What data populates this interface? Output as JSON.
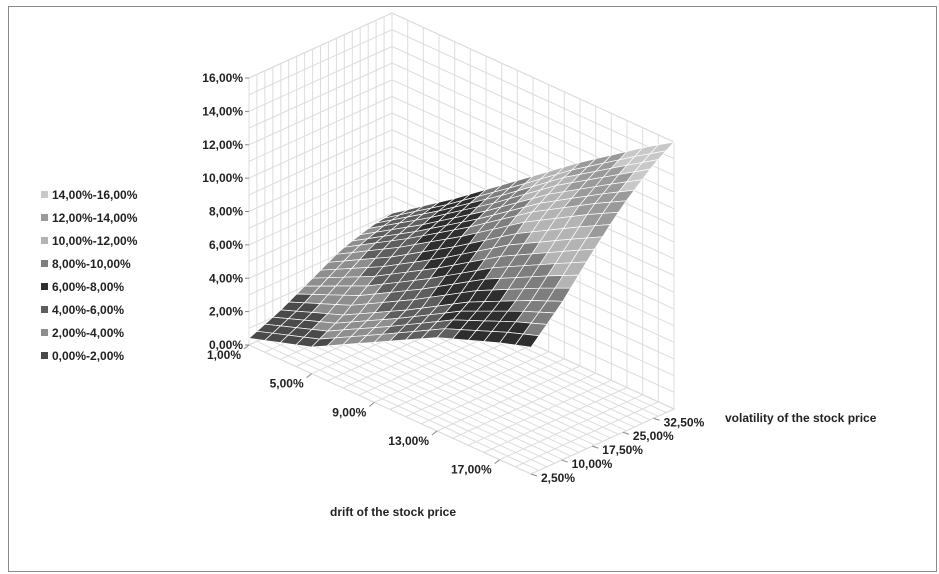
{
  "chart_data": {
    "type": "surface",
    "title": "",
    "xlabel": "drift of the stock price",
    "ylabel": "volatility of the stock price",
    "zlabel": "",
    "x_ticks": [
      "1,00%",
      "5,00%",
      "9,00%",
      "13,00%",
      "17,00%"
    ],
    "y_ticks": [
      "2,50%",
      "10,00%",
      "17,50%",
      "25,00%",
      "32,50%"
    ],
    "z_ticks": [
      "0,00%",
      "2,00%",
      "4,00%",
      "6,00%",
      "8,00%",
      "10,00%",
      "12,00%",
      "14,00%",
      "16,00%"
    ],
    "x_range": [
      1,
      19
    ],
    "y_range": [
      2.5,
      37.5
    ],
    "z_range": [
      0,
      16
    ],
    "legend_position": "left",
    "legend": [
      {
        "label": "14,00%-16,00%",
        "color": "#c8c8c8"
      },
      {
        "label": "12,00%-14,00%",
        "color": "#9a9a9a"
      },
      {
        "label": "10,00%-12,00%",
        "color": "#b4b4b4"
      },
      {
        "label": "8,00%-10,00%",
        "color": "#7e7e7e"
      },
      {
        "label": "6,00%-8,00%",
        "color": "#2e2e2e"
      },
      {
        "label": "4,00%-6,00%",
        "color": "#5e5e5e"
      },
      {
        "label": "2,00%-4,00%",
        "color": "#8e8e8e"
      },
      {
        "label": "0,00%-2,00%",
        "color": "#4a4a4a"
      }
    ],
    "band_colors": [
      "#4a4a4a",
      "#8e8e8e",
      "#5e5e5e",
      "#2e2e2e",
      "#7e7e7e",
      "#b4b4b4",
      "#9a9a9a",
      "#c8c8c8"
    ],
    "surface": {
      "x": [
        1,
        5,
        9,
        13,
        17,
        19
      ],
      "y": [
        2.5,
        10,
        17.5,
        25,
        32.5,
        37.5
      ],
      "z": [
        [
          0.4,
          1.6,
          3.6,
          5.6,
          7.0,
          7.6
        ],
        [
          1.2,
          2.6,
          4.6,
          6.8,
          8.6,
          9.4
        ],
        [
          2.2,
          4.0,
          6.2,
          8.6,
          10.6,
          11.6
        ],
        [
          3.2,
          5.4,
          7.8,
          10.4,
          12.6,
          13.6
        ],
        [
          3.8,
          6.2,
          8.8,
          11.6,
          14.0,
          15.2
        ],
        [
          4.0,
          6.6,
          9.4,
          12.2,
          14.8,
          16.0
        ]
      ]
    }
  }
}
